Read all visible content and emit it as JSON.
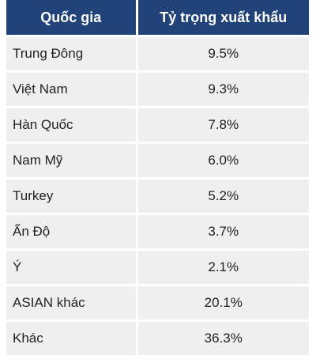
{
  "table": {
    "headers": {
      "country": "Quốc gia",
      "share": "Tỷ trọng xuất khẩu"
    },
    "rows": [
      {
        "country": "Trung Đông",
        "share": "9.5%"
      },
      {
        "country": "Việt Nam",
        "share": "9.3%"
      },
      {
        "country": "Hàn Quốc",
        "share": "7.8%"
      },
      {
        "country": "Nam Mỹ",
        "share": "6.0%"
      },
      {
        "country": "Turkey",
        "share": "5.2%"
      },
      {
        "country": "Ấn Độ",
        "share": "3.7%"
      },
      {
        "country": "Ý",
        "share": "2.1%"
      },
      {
        "country": "ASIAN khác",
        "share": "20.1%"
      },
      {
        "country": "Khác",
        "share": "36.3%"
      }
    ]
  },
  "colors": {
    "header_background": "#22427a",
    "row_background": "#efefef"
  }
}
